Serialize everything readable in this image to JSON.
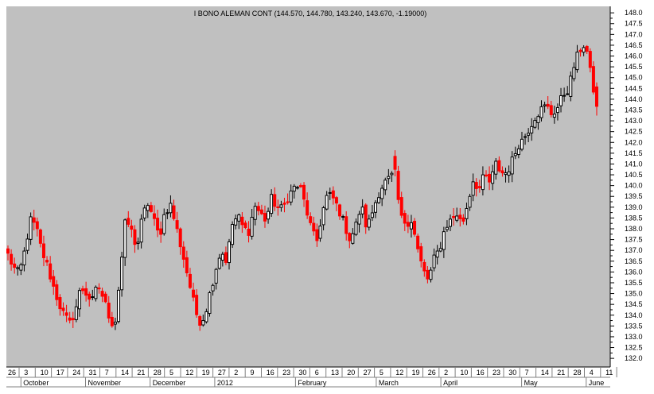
{
  "chart_data": {
    "type": "candlestick",
    "title": "I BONO ALEMAN CONT (144.570, 144.780, 143.240, 143.670, -1.19000)",
    "xlabel": "",
    "ylabel": "",
    "ylim": [
      131.6,
      148.3
    ],
    "grid": false,
    "legend": "none",
    "y_ticks": [
      "148.0",
      "147.5",
      "147.0",
      "146.5",
      "146.0",
      "145.5",
      "145.0",
      "144.5",
      "144.0",
      "143.5",
      "143.0",
      "142.5",
      "142.0",
      "141.5",
      "141.0",
      "140.5",
      "140.0",
      "139.5",
      "139.0",
      "138.5",
      "138.0",
      "137.5",
      "137.0",
      "136.5",
      "136.0",
      "135.5",
      "135.0",
      "134.5",
      "134.0",
      "133.5",
      "133.0",
      "132.5",
      "132.0"
    ],
    "x_day_labels": [
      "26",
      "3",
      "10",
      "17",
      "24",
      "31",
      "7",
      "14",
      "21",
      "28",
      "5",
      "12",
      "19",
      "27",
      "2",
      "9",
      "16",
      "23",
      "30",
      "6",
      "13",
      "20",
      "27",
      "5",
      "12",
      "19",
      "26",
      "2",
      "10",
      "16",
      "23",
      "30",
      "7",
      "14",
      "21",
      "28",
      "4",
      "11"
    ],
    "x_month_labels": [
      "October",
      "November",
      "December",
      "2012",
      "February",
      "March",
      "April",
      "May",
      "June"
    ],
    "anchors": [
      136.8,
      136.2,
      135.9,
      137.0,
      138.4,
      138.1,
      137.0,
      136.3,
      135.4,
      134.6,
      134.0,
      133.6,
      134.2,
      135.3,
      135.0,
      134.6,
      135.4,
      134.8,
      134.0,
      133.4,
      135.9,
      138.5,
      137.9,
      137.1,
      138.6,
      139.2,
      138.4,
      137.6,
      138.8,
      139.1,
      138.1,
      137.0,
      135.9,
      134.7,
      133.7,
      133.9,
      135.0,
      136.1,
      137.0,
      136.5,
      138.2,
      138.6,
      138.0,
      137.9,
      139.1,
      138.7,
      138.4,
      139.4,
      139.0,
      138.9,
      139.5,
      139.9,
      140.0,
      139.1,
      138.1,
      137.3,
      138.7,
      139.6,
      139.4,
      138.9,
      138.2,
      137.5,
      138.1,
      139.1,
      138.0,
      138.8,
      139.6,
      140.1,
      140.3,
      140.6,
      138.5,
      138.3,
      138.4,
      137.1,
      136.1,
      135.6,
      136.6,
      137.1,
      138.1,
      138.4,
      138.7,
      138.2,
      139.2,
      140.3,
      139.8,
      140.5,
      140.1,
      141.0,
      140.6,
      140.6,
      141.2,
      141.9,
      142.2,
      142.7,
      143.2,
      143.5,
      143.7,
      143.3,
      143.6,
      144.2,
      144.5,
      145.6,
      146.3,
      146.6,
      145.0,
      143.67
    ],
    "breaks": [
      69
    ],
    "last_candle": {
      "open": 144.57,
      "high": 144.78,
      "low": 143.24,
      "close": 143.67,
      "change": -1.19
    }
  }
}
